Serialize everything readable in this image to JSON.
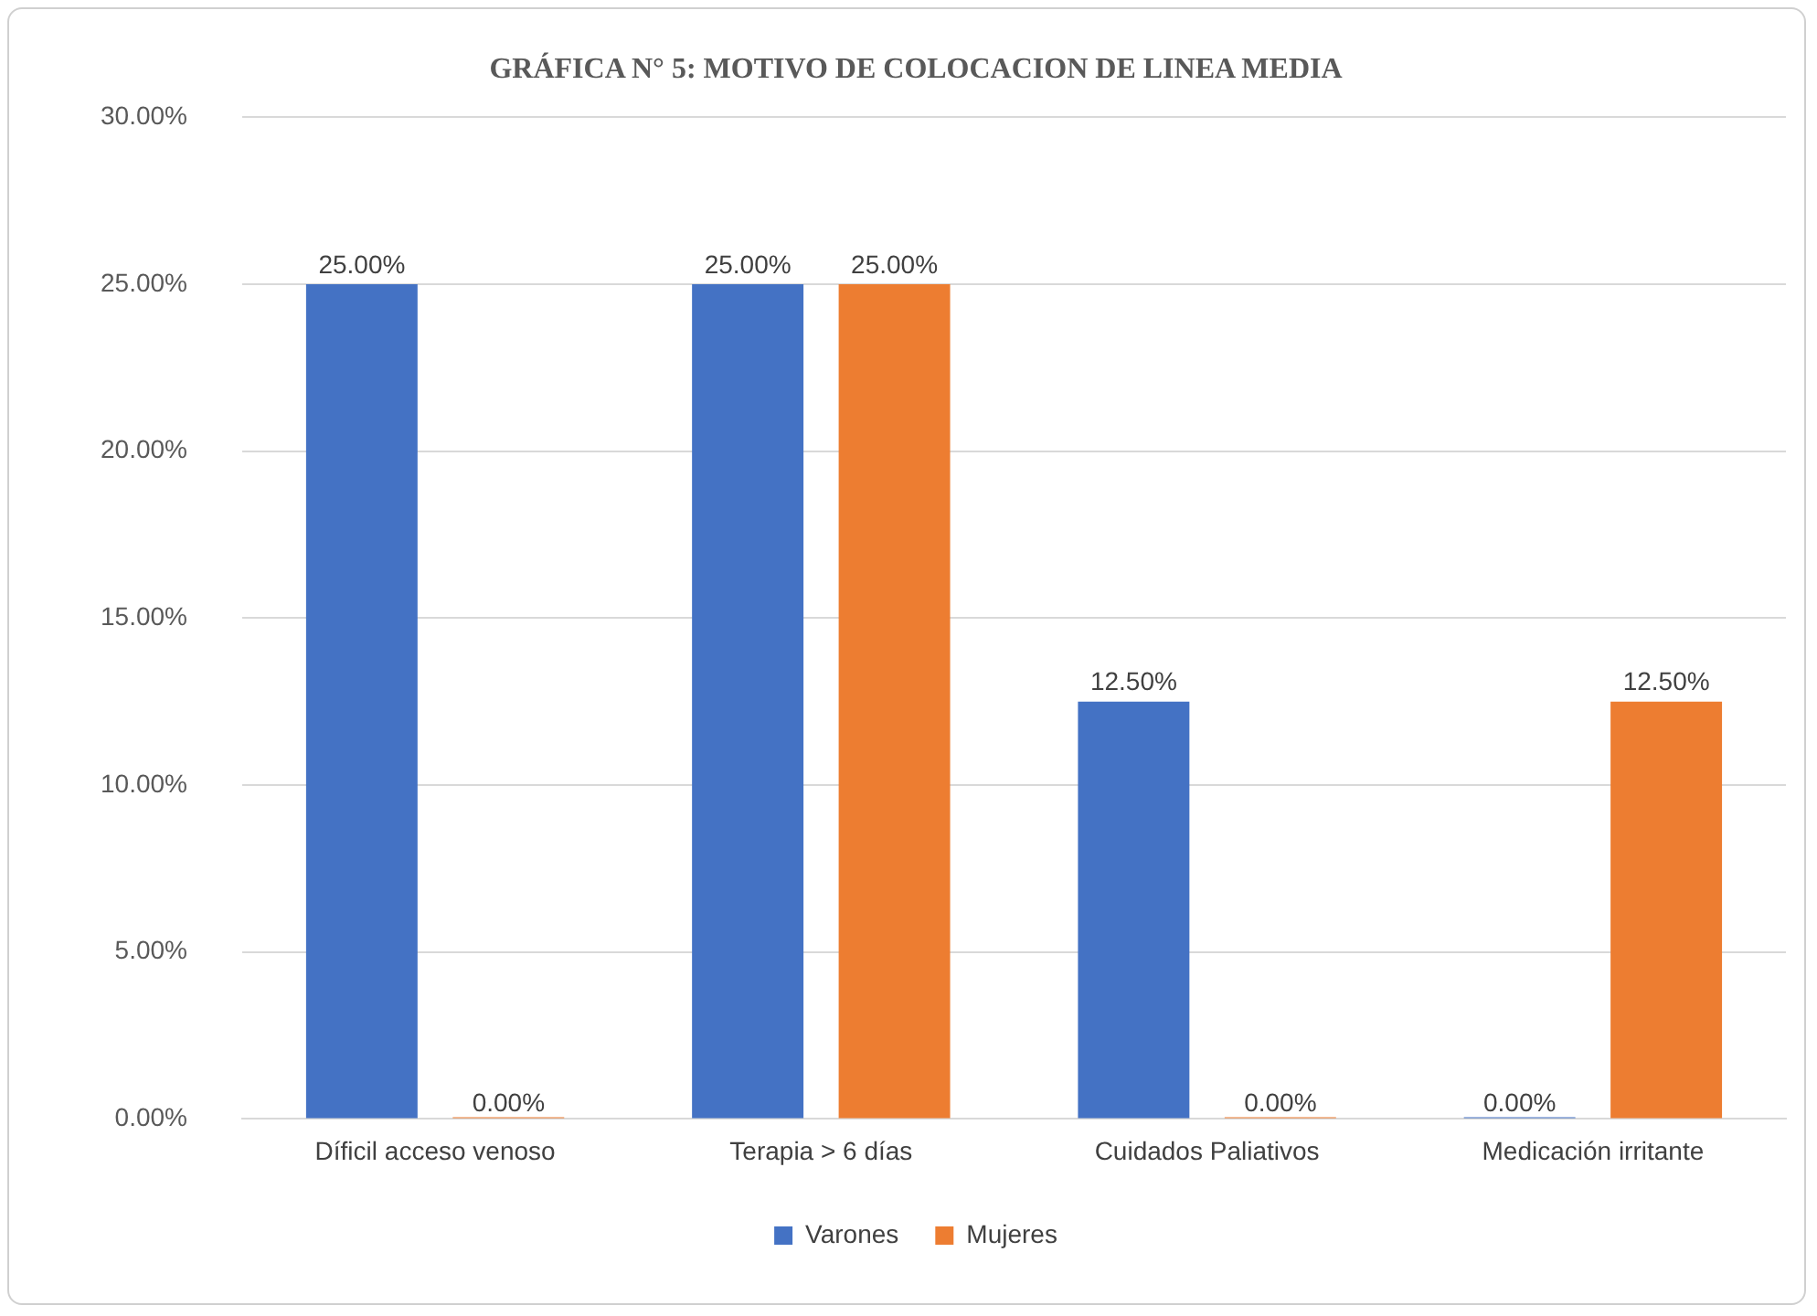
{
  "chart_data": {
    "type": "bar",
    "title": "GRÁFICA N° 5: MOTIVO DE COLOCACION DE LINEA MEDIA",
    "categories": [
      "Díficil acceso venoso",
      "Terapia > 6 días",
      "Cuidados Paliativos",
      "Medicación irritante"
    ],
    "series": [
      {
        "name": "Varones",
        "color": "#4472c4",
        "values": [
          25,
          25,
          12.5,
          0
        ],
        "value_labels": [
          "25.00%",
          "25.00%",
          "12.50%",
          "0.00%"
        ]
      },
      {
        "name": "Mujeres",
        "color": "#ed7d31",
        "values": [
          0,
          25,
          0,
          12.5
        ],
        "value_labels": [
          "0.00%",
          "25.00%",
          "0.00%",
          "12.50%"
        ]
      }
    ],
    "ylim": [
      0,
      30
    ],
    "yticks": [
      {
        "value": 0,
        "label": "0.00%"
      },
      {
        "value": 5,
        "label": "5.00%"
      },
      {
        "value": 10,
        "label": "10.00%"
      },
      {
        "value": 15,
        "label": "15.00%"
      },
      {
        "value": 20,
        "label": "20.00%"
      },
      {
        "value": 25,
        "label": "25.00%"
      },
      {
        "value": 30,
        "label": "30.00%"
      }
    ],
    "grid": "y",
    "legend": "bottom"
  }
}
